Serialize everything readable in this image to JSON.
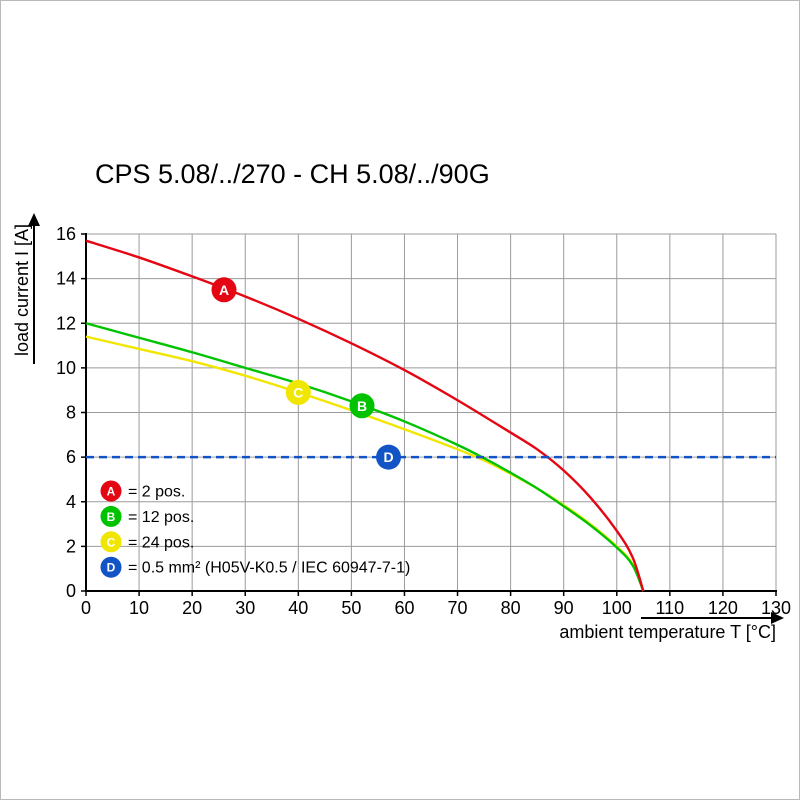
{
  "chart_data": {
    "type": "line",
    "title": "CPS 5.08/../270 - CH 5.08/../90G",
    "xlabel": "ambient temperature T [°C]",
    "ylabel": "load current I [A]",
    "xlim": [
      0,
      130
    ],
    "ylim": [
      0,
      16
    ],
    "xticks": [
      0,
      10,
      20,
      30,
      40,
      50,
      60,
      70,
      80,
      90,
      100,
      110,
      120,
      130
    ],
    "yticks": [
      0,
      2,
      4,
      6,
      8,
      10,
      12,
      14,
      16
    ],
    "grid": true,
    "legend_position": "bottom-left-inside",
    "series": [
      {
        "name": "A",
        "label": "= 2 pos.",
        "color": "#e40613",
        "dashed": false,
        "marker": {
          "x": 26,
          "y": 13.5
        },
        "points": [
          [
            0,
            15.7
          ],
          [
            10,
            14.95
          ],
          [
            20,
            14.1
          ],
          [
            30,
            13.2
          ],
          [
            40,
            12.2
          ],
          [
            50,
            11.1
          ],
          [
            60,
            9.9
          ],
          [
            70,
            8.55
          ],
          [
            80,
            7.1
          ],
          [
            85,
            6.35
          ],
          [
            90,
            5.4
          ],
          [
            95,
            4.2
          ],
          [
            100,
            2.7
          ],
          [
            103,
            1.5
          ],
          [
            105,
            0
          ]
        ]
      },
      {
        "name": "B",
        "label": "= 12 pos.",
        "color": "#00c300",
        "dashed": false,
        "marker": {
          "x": 52,
          "y": 8.3
        },
        "points": [
          [
            0,
            12.0
          ],
          [
            10,
            11.35
          ],
          [
            20,
            10.7
          ],
          [
            30,
            10.0
          ],
          [
            40,
            9.3
          ],
          [
            50,
            8.5
          ],
          [
            60,
            7.6
          ],
          [
            70,
            6.55
          ],
          [
            75,
            5.95
          ],
          [
            80,
            5.3
          ],
          [
            85,
            4.6
          ],
          [
            90,
            3.8
          ],
          [
            95,
            2.95
          ],
          [
            100,
            1.95
          ],
          [
            103,
            1.15
          ],
          [
            105,
            0
          ]
        ]
      },
      {
        "name": "C",
        "label": "= 24 pos.",
        "color": "#f0e600",
        "dashed": false,
        "marker": {
          "x": 40,
          "y": 8.9
        },
        "points": [
          [
            0,
            11.4
          ],
          [
            10,
            10.85
          ],
          [
            20,
            10.3
          ],
          [
            30,
            9.65
          ],
          [
            40,
            8.9
          ],
          [
            50,
            8.1
          ],
          [
            60,
            7.25
          ],
          [
            70,
            6.35
          ],
          [
            75,
            5.85
          ],
          [
            80,
            5.25
          ],
          [
            85,
            4.6
          ],
          [
            90,
            3.85
          ],
          [
            95,
            3.0
          ],
          [
            100,
            2.0
          ],
          [
            103,
            1.2
          ],
          [
            105,
            0
          ]
        ]
      },
      {
        "name": "D",
        "label": "= 0.5 mm² (H05V-K0.5 / IEC 60947-7-1)",
        "color": "#1253c6",
        "dashed": true,
        "marker": {
          "x": 57,
          "y": 6
        },
        "points": [
          [
            0,
            6
          ],
          [
            130,
            6
          ]
        ]
      }
    ]
  }
}
